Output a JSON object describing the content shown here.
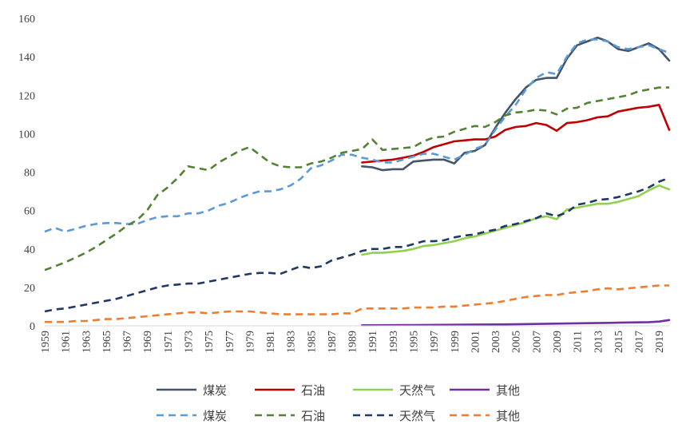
{
  "chart_data": {
    "type": "line",
    "ylim": [
      0,
      160
    ],
    "yticks": [
      0,
      20,
      40,
      60,
      80,
      100,
      120,
      140,
      160
    ],
    "xlim": [
      1959,
      2020
    ],
    "xticks": [
      1959,
      1961,
      1963,
      1965,
      1967,
      1969,
      1971,
      1973,
      1975,
      1977,
      1979,
      1981,
      1983,
      1985,
      1987,
      1989,
      1991,
      1993,
      1995,
      1997,
      1999,
      2001,
      2003,
      2005,
      2007,
      2009,
      2011,
      2013,
      2015,
      2017,
      2019
    ],
    "grid": false,
    "legend_position": "bottom",
    "series": [
      {
        "name": "煤炭",
        "style": "solid",
        "color": "#44546A",
        "x": [
          1990,
          1991,
          1992,
          1993,
          1994,
          1995,
          1996,
          1997,
          1998,
          1999,
          2000,
          2001,
          2002,
          2003,
          2004,
          2005,
          2006,
          2007,
          2008,
          2009,
          2010,
          2011,
          2012,
          2013,
          2014,
          2015,
          2016,
          2017,
          2018,
          2019,
          2020
        ],
        "y": [
          83,
          82.5,
          81,
          81.5,
          81.5,
          85.5,
          86,
          86.5,
          86.5,
          84.5,
          90,
          91,
          94,
          103,
          111,
          118,
          124,
          128,
          129,
          129,
          139,
          146,
          148,
          150,
          148,
          144,
          143,
          145,
          147,
          144,
          138
        ]
      },
      {
        "name": "石油",
        "style": "solid",
        "color": "#C00000",
        "x": [
          1990,
          1991,
          1992,
          1993,
          1994,
          1995,
          1996,
          1997,
          1998,
          1999,
          2000,
          2001,
          2002,
          2003,
          2004,
          2005,
          2006,
          2007,
          2008,
          2009,
          2010,
          2011,
          2012,
          2013,
          2014,
          2015,
          2016,
          2017,
          2018,
          2019,
          2020
        ],
        "y": [
          85,
          85.5,
          86,
          86.5,
          87.5,
          88.5,
          90.5,
          93,
          94.5,
          96,
          96.5,
          97,
          97,
          98.5,
          102,
          103.5,
          104,
          105.5,
          104.5,
          101.5,
          105.5,
          106,
          107,
          108.5,
          109,
          111.5,
          112.5,
          113.5,
          114,
          115,
          102
        ]
      },
      {
        "name": "天然气",
        "style": "solid",
        "color": "#92D050",
        "x": [
          1990,
          1991,
          1992,
          1993,
          1994,
          1995,
          1996,
          1997,
          1998,
          1999,
          2000,
          2001,
          2002,
          2003,
          2004,
          2005,
          2006,
          2007,
          2008,
          2009,
          2010,
          2011,
          2012,
          2013,
          2014,
          2015,
          2016,
          2017,
          2018,
          2019,
          2020
        ],
        "y": [
          37,
          38,
          38,
          38.5,
          39,
          40,
          41.5,
          42,
          43,
          44,
          45.5,
          46.5,
          48,
          49.5,
          51,
          52.5,
          54,
          56,
          57,
          55.5,
          60.5,
          61.5,
          62.5,
          63.5,
          63.5,
          64.5,
          66,
          67.5,
          70.5,
          73,
          71
        ]
      },
      {
        "name": "其他",
        "style": "solid",
        "color": "#7030A0",
        "x": [
          1990,
          1995,
          2000,
          2005,
          2010,
          2015,
          2018,
          2019,
          2020
        ],
        "y": [
          0.3,
          0.4,
          0.6,
          0.8,
          1.2,
          1.6,
          1.9,
          2.2,
          3
        ]
      },
      {
        "name": "煤炭",
        "style": "dashed",
        "color": "#5B9BD5",
        "x": [
          1959,
          1960,
          1961,
          1962,
          1963,
          1964,
          1965,
          1966,
          1967,
          1968,
          1969,
          1970,
          1971,
          1972,
          1973,
          1974,
          1975,
          1976,
          1977,
          1978,
          1979,
          1980,
          1981,
          1982,
          1983,
          1984,
          1985,
          1986,
          1987,
          1988,
          1989,
          1990,
          1991,
          1992,
          1993,
          1994,
          1995,
          1996,
          1997,
          1998,
          1999,
          2000,
          2001,
          2002,
          2003,
          2004,
          2005,
          2006,
          2007,
          2008,
          2009,
          2010,
          2011,
          2012,
          2013,
          2014,
          2015,
          2016,
          2017,
          2018,
          2019,
          2020
        ],
        "y": [
          49,
          51,
          49,
          50.5,
          52,
          53,
          53.5,
          53.5,
          53,
          53,
          55,
          56.5,
          57,
          57,
          58.5,
          58.5,
          60,
          62.5,
          64,
          66.5,
          68.5,
          70,
          70,
          71,
          73,
          76.5,
          82,
          83.5,
          86,
          89,
          89,
          87.5,
          86.5,
          85,
          85,
          86.5,
          88,
          89.5,
          89.5,
          88,
          86.5,
          89,
          92,
          94,
          102,
          109,
          115,
          123,
          129,
          132,
          131,
          140,
          147,
          149,
          149,
          148,
          145,
          144,
          145,
          146,
          144,
          142
        ]
      },
      {
        "name": "石油",
        "style": "dashed",
        "color": "#548235",
        "x": [
          1959,
          1960,
          1961,
          1962,
          1963,
          1964,
          1965,
          1966,
          1967,
          1968,
          1969,
          1970,
          1971,
          1972,
          1973,
          1974,
          1975,
          1976,
          1977,
          1978,
          1979,
          1980,
          1981,
          1982,
          1983,
          1984,
          1985,
          1986,
          1987,
          1988,
          1989,
          1990,
          1991,
          1992,
          1993,
          1994,
          1995,
          1996,
          1997,
          1998,
          1999,
          2000,
          2001,
          2002,
          2003,
          2004,
          2005,
          2006,
          2007,
          2008,
          2009,
          2010,
          2011,
          2012,
          2013,
          2014,
          2015,
          2016,
          2017,
          2018,
          2019,
          2020
        ],
        "y": [
          29,
          31,
          33,
          35.5,
          38,
          41,
          44.5,
          48,
          52,
          55,
          60,
          68,
          72,
          77,
          83,
          82,
          81,
          85,
          88,
          91,
          93,
          89,
          85,
          83,
          82.5,
          82.5,
          84.5,
          85.5,
          87.5,
          90,
          91,
          92,
          97,
          91.5,
          92,
          92.5,
          93,
          96,
          98,
          98.5,
          101,
          102.5,
          104,
          103.5,
          106,
          109.5,
          111,
          111.5,
          112.5,
          112,
          110,
          113,
          113.5,
          116,
          117,
          118,
          119,
          120,
          122,
          123,
          124,
          124
        ]
      },
      {
        "name": "天然气",
        "style": "dashed",
        "color": "#203864",
        "x": [
          1959,
          1960,
          1961,
          1962,
          1963,
          1964,
          1965,
          1966,
          1967,
          1968,
          1969,
          1970,
          1971,
          1972,
          1973,
          1974,
          1975,
          1976,
          1977,
          1978,
          1979,
          1980,
          1981,
          1982,
          1983,
          1984,
          1985,
          1986,
          1987,
          1988,
          1989,
          1990,
          1991,
          1992,
          1993,
          1994,
          1995,
          1996,
          1997,
          1998,
          1999,
          2000,
          2001,
          2002,
          2003,
          2004,
          2005,
          2006,
          2007,
          2008,
          2009,
          2010,
          2011,
          2012,
          2013,
          2014,
          2015,
          2016,
          2017,
          2018,
          2019,
          2020
        ],
        "y": [
          7.5,
          8.5,
          9,
          10,
          11,
          12,
          13,
          14,
          15.5,
          17,
          18.5,
          20,
          21,
          21.5,
          22,
          22,
          23,
          24,
          25,
          26,
          27,
          27.5,
          27.5,
          27,
          29,
          31,
          30,
          31,
          34,
          35.5,
          37,
          39,
          40,
          40,
          41,
          41,
          42.5,
          44,
          44,
          44.5,
          46,
          47,
          47.5,
          49,
          50,
          52,
          53,
          54.5,
          56,
          58.5,
          57,
          59,
          63,
          64,
          65.5,
          66,
          67,
          68.5,
          70,
          72,
          75,
          77
        ]
      },
      {
        "name": "其他",
        "style": "dashed",
        "color": "#ED7D31",
        "x": [
          1959,
          1960,
          1961,
          1962,
          1963,
          1964,
          1965,
          1966,
          1967,
          1968,
          1969,
          1970,
          1971,
          1972,
          1973,
          1974,
          1975,
          1976,
          1977,
          1978,
          1979,
          1980,
          1981,
          1982,
          1983,
          1984,
          1985,
          1986,
          1987,
          1988,
          1989,
          1990,
          1991,
          1992,
          1993,
          1994,
          1995,
          1996,
          1997,
          1998,
          1999,
          2000,
          2001,
          2002,
          2003,
          2004,
          2005,
          2006,
          2007,
          2008,
          2009,
          2010,
          2011,
          2012,
          2013,
          2014,
          2015,
          2016,
          2017,
          2018,
          2019,
          2020
        ],
        "y": [
          2,
          2,
          2,
          2.5,
          2.5,
          3,
          3.5,
          3.5,
          4,
          4.5,
          5,
          5.5,
          6,
          6.5,
          7,
          7,
          6.5,
          7,
          7.5,
          7.5,
          7.5,
          7,
          6.5,
          6,
          6,
          6,
          6,
          6,
          6,
          6.5,
          6.5,
          9,
          9,
          9,
          9,
          9,
          9.5,
          9.5,
          9.5,
          10,
          10,
          10.5,
          11,
          11.5,
          12,
          13,
          14,
          15,
          15.5,
          16,
          16,
          17,
          17.5,
          18,
          19,
          19.5,
          19,
          19.5,
          20,
          20.5,
          21,
          21
        ]
      }
    ]
  }
}
